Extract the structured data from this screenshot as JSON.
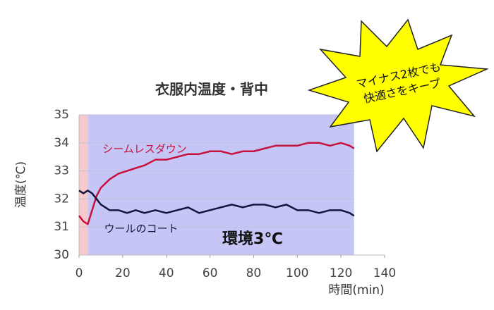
{
  "chart_data": {
    "type": "line",
    "title": "衣服内温度・背中",
    "y_label": "温度(℃)",
    "x_label": "時間(min)",
    "annotation": "環境3℃",
    "callout": [
      "マイナス2枚でも",
      "快適さをキープ"
    ],
    "xlim": [
      0,
      140
    ],
    "xticks": [
      0,
      20,
      40,
      60,
      80,
      100,
      120,
      140
    ],
    "ylim": [
      30,
      35
    ],
    "yticks": [
      30,
      31,
      32,
      33,
      34,
      35
    ],
    "grid": true,
    "shaded_regions": [
      {
        "xlim": [
          0,
          4
        ],
        "color": "#f8c8cc"
      },
      {
        "xlim": [
          4,
          126
        ],
        "color": "#c6c6f6"
      }
    ],
    "series": [
      {
        "name": "シームレスダウン",
        "color": "#c8103c",
        "x": [
          0,
          2,
          4,
          6,
          8,
          10,
          14,
          18,
          22,
          26,
          30,
          35,
          40,
          45,
          50,
          55,
          60,
          65,
          70,
          75,
          80,
          85,
          90,
          95,
          100,
          105,
          110,
          115,
          120,
          124,
          126
        ],
        "values": [
          31.4,
          31.2,
          31.1,
          31.6,
          32.1,
          32.4,
          32.7,
          32.9,
          33.0,
          33.1,
          33.2,
          33.4,
          33.4,
          33.5,
          33.6,
          33.6,
          33.7,
          33.7,
          33.6,
          33.7,
          33.7,
          33.8,
          33.9,
          33.9,
          33.9,
          34.0,
          34.0,
          33.9,
          34.0,
          33.9,
          33.8
        ]
      },
      {
        "name": "ウールのコート",
        "color": "#14143c",
        "x": [
          0,
          2,
          4,
          6,
          8,
          10,
          14,
          18,
          22,
          26,
          30,
          35,
          40,
          45,
          50,
          55,
          60,
          65,
          70,
          75,
          80,
          85,
          90,
          95,
          100,
          105,
          110,
          115,
          120,
          124,
          126
        ],
        "values": [
          32.3,
          32.2,
          32.3,
          32.2,
          32.0,
          31.8,
          31.6,
          31.6,
          31.5,
          31.6,
          31.5,
          31.6,
          31.5,
          31.6,
          31.7,
          31.5,
          31.6,
          31.7,
          31.8,
          31.7,
          31.8,
          31.8,
          31.7,
          31.8,
          31.6,
          31.6,
          31.5,
          31.6,
          31.6,
          31.5,
          31.4
        ]
      }
    ]
  }
}
